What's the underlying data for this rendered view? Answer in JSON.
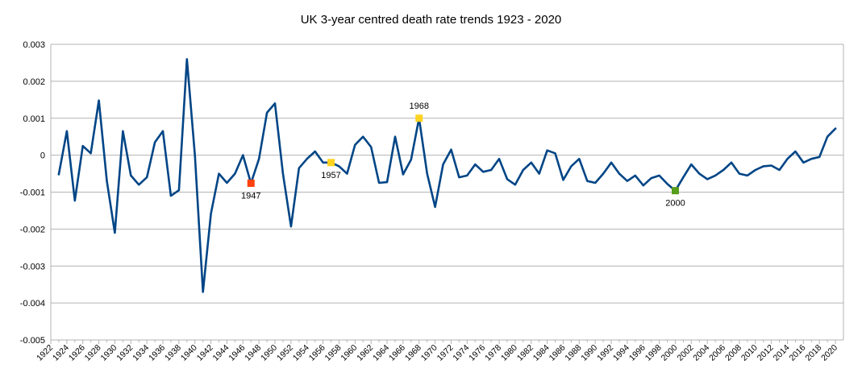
{
  "chart_data": {
    "type": "line",
    "title": "UK 3-year centred death rate trends 1923 - 2020",
    "xlabel": "",
    "ylabel": "",
    "ylim": [
      -0.005,
      0.003
    ],
    "yticks": [
      0.003,
      0.002,
      0.001,
      0,
      -0.001,
      -0.002,
      -0.003,
      -0.004,
      -0.005
    ],
    "ytick_labels": [
      "0.003",
      "0.002",
      "0.001",
      "0",
      "-0.001",
      "-0.002",
      "-0.003",
      "-0.004",
      "-0.005"
    ],
    "xlim": [
      1922,
      2021
    ],
    "xtick_labels": [
      "1922",
      "1924",
      "1926",
      "1928",
      "1930",
      "1932",
      "1934",
      "1936",
      "1938",
      "1940",
      "1942",
      "1944",
      "1946",
      "1948",
      "1950",
      "1952",
      "1954",
      "1956",
      "1958",
      "1960",
      "1962",
      "1964",
      "1966",
      "1968",
      "1970",
      "1972",
      "1974",
      "1976",
      "1978",
      "1980",
      "1982",
      "1984",
      "1986",
      "1988",
      "1990",
      "1992",
      "1994",
      "1996",
      "1998",
      "2000",
      "2002",
      "2004",
      "2006",
      "2008",
      "2010",
      "2012",
      "2014",
      "2016",
      "2018",
      "2020"
    ],
    "grid": true,
    "legend": "none",
    "line_color": "#004586",
    "x": [
      1923,
      1924,
      1925,
      1926,
      1927,
      1928,
      1929,
      1930,
      1931,
      1932,
      1933,
      1934,
      1935,
      1936,
      1937,
      1938,
      1939,
      1940,
      1941,
      1942,
      1943,
      1944,
      1945,
      1946,
      1947,
      1948,
      1949,
      1950,
      1951,
      1952,
      1953,
      1954,
      1955,
      1956,
      1957,
      1958,
      1959,
      1960,
      1961,
      1962,
      1963,
      1964,
      1965,
      1966,
      1967,
      1968,
      1969,
      1970,
      1971,
      1972,
      1973,
      1974,
      1975,
      1976,
      1977,
      1978,
      1979,
      1980,
      1981,
      1982,
      1983,
      1984,
      1985,
      1986,
      1987,
      1988,
      1989,
      1990,
      1991,
      1992,
      1993,
      1994,
      1995,
      1996,
      1997,
      1998,
      1999,
      2000,
      2001,
      2002,
      2003,
      2004,
      2005,
      2006,
      2007,
      2008,
      2009,
      2010,
      2011,
      2012,
      2013,
      2014,
      2015,
      2016,
      2017,
      2018,
      2019,
      2020
    ],
    "series": [
      {
        "values": [
          -0.00052,
          0.00065,
          -0.00123,
          0.00025,
          5e-05,
          0.00148,
          -0.0007,
          -0.0021,
          0.00065,
          -0.00055,
          -0.0008,
          -0.0006,
          0.00035,
          0.00065,
          -0.0011,
          -0.00095,
          0.0026,
          0.0,
          -0.0037,
          -0.00158,
          -0.0005,
          -0.00075,
          -0.0005,
          0.0,
          -0.00076,
          -0.0001,
          0.00115,
          0.0014,
          -0.0005,
          -0.00193,
          -0.00035,
          -0.0001,
          0.0001,
          -0.0002,
          -0.0002,
          -0.0003,
          -0.0005,
          0.00028,
          0.0005,
          0.00022,
          -0.00075,
          -0.00073,
          0.0005,
          -0.00052,
          -0.00012,
          0.001,
          -0.0005,
          -0.0014,
          -0.00025,
          0.00015,
          -0.0006,
          -0.00055,
          -0.00025,
          -0.00045,
          -0.0004,
          -0.0001,
          -0.00065,
          -0.0008,
          -0.0004,
          -0.0002,
          -0.0005,
          0.00013,
          5e-05,
          -0.00067,
          -0.0003,
          -0.0001,
          -0.0007,
          -0.00075,
          -0.0005,
          -0.0002,
          -0.0005,
          -0.0007,
          -0.00055,
          -0.00082,
          -0.00062,
          -0.00055,
          -0.00078,
          -0.00096,
          -0.0006,
          -0.00025,
          -0.0005,
          -0.00065,
          -0.00055,
          -0.0004,
          -0.0002,
          -0.0005,
          -0.00055,
          -0.0004,
          -0.0003,
          -0.00028,
          -0.0004,
          -0.0001,
          0.0001,
          -0.0002,
          -0.0001,
          -5e-05,
          0.0005,
          0.00072
        ]
      }
    ],
    "annotations": [
      {
        "label": "1947",
        "x": 1947,
        "y": -0.00076,
        "color": "#ff420e",
        "label_pos": "below"
      },
      {
        "label": "1957",
        "x": 1957,
        "y": -0.0002,
        "color": "#ffd320",
        "label_pos": "below"
      },
      {
        "label": "1968",
        "x": 1968,
        "y": 0.001,
        "color": "#ffd320",
        "label_pos": "above"
      },
      {
        "label": "2000",
        "x": 2000,
        "y": -0.00096,
        "color": "#579d1c",
        "label_pos": "below"
      }
    ]
  }
}
